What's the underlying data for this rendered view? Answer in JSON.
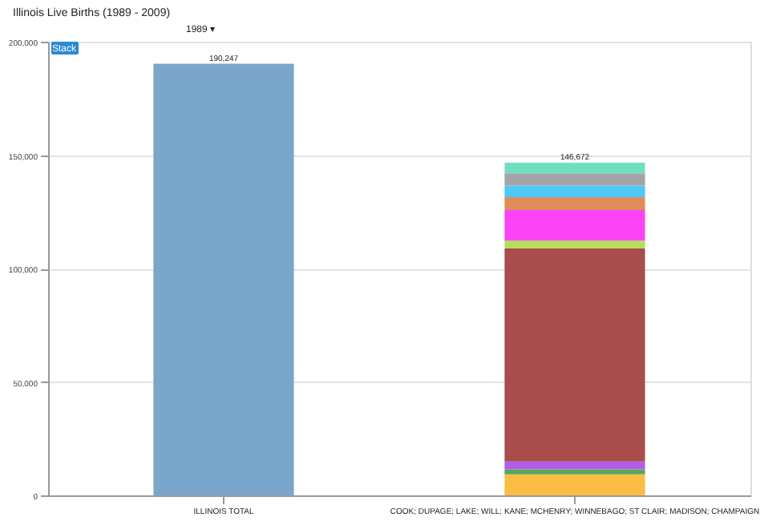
{
  "chart_data": {
    "type": "bar",
    "title": "Illinois Live Births (1989 - 2009)",
    "annotations": [
      "1989 ▾",
      "Stack"
    ],
    "categories": [
      "ILLINOIS TOTAL",
      "COOK; DUPAGE; LAKE; WILL; KANE; MCHENRY; WINNEBAGO; ST CLAIR; MADISON; CHAMPAIGN"
    ],
    "stacked": true,
    "series": [
      {
        "color": "#7ba6cc",
        "values": [
          190247,
          null
        ]
      },
      {
        "color": "#fbbd45",
        "values": [
          null,
          9300
        ]
      },
      {
        "color": "#5aa55a",
        "values": [
          null,
          2200
        ]
      },
      {
        "color": "#b05ee8",
        "values": [
          null,
          3400
        ]
      },
      {
        "color": "#a84c4c",
        "values": [
          null,
          93972
        ]
      },
      {
        "color": "#b4e05a",
        "values": [
          null,
          3400
        ]
      },
      {
        "color": "#fb44f5",
        "values": [
          null,
          13500
        ]
      },
      {
        "color": "#e08c5a",
        "values": [
          null,
          5700
        ]
      },
      {
        "color": "#4ccaf5",
        "values": [
          null,
          5100
        ]
      },
      {
        "color": "#a5a3a8",
        "values": [
          null,
          5400
        ]
      },
      {
        "color": "#6ee0c0",
        "values": [
          null,
          4700
        ]
      }
    ],
    "totals": [
      "190,247",
      "146,672"
    ],
    "ylim": [
      0,
      200000
    ],
    "yticks": [
      {
        "value": 0,
        "label": "0"
      },
      {
        "value": 50000,
        "label": "50,000"
      },
      {
        "value": 100000,
        "label": "100,000"
      },
      {
        "value": 150000,
        "label": "150,000"
      },
      {
        "value": 200000,
        "label": "200,000"
      }
    ],
    "grid": "y",
    "legend": false
  }
}
